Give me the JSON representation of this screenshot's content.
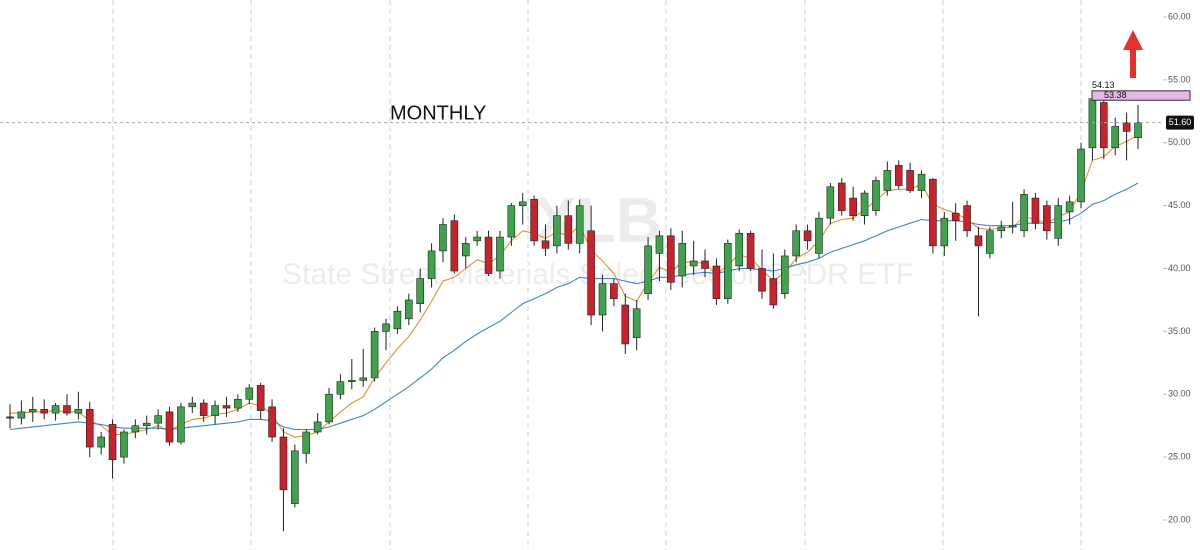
{
  "chart_data": {
    "type": "candlestick",
    "title": "XLB",
    "subtitle": "State Street Materials Select Sector SPDR ETF",
    "annotation": "MONTHLY",
    "up_color": "#3fa34d",
    "down_color": "#c8232c",
    "ylim": [
      20,
      60
    ],
    "yticks": [
      {
        "value": 20,
        "label": "20.00"
      },
      {
        "value": 25,
        "label": "25.00"
      },
      {
        "value": 30,
        "label": "30.00"
      },
      {
        "value": 35,
        "label": "35.00"
      },
      {
        "value": 40,
        "label": "40.00"
      },
      {
        "value": 45,
        "label": "45.00"
      },
      {
        "value": 50,
        "label": "50.00"
      },
      {
        "value": 55,
        "label": "55.00"
      },
      {
        "value": 60,
        "label": "60.00"
      }
    ],
    "last_price": {
      "value": 51.6,
      "label": "51.60"
    },
    "zone": {
      "high": 54.13,
      "low": 53.38,
      "color": "#e3b6e3"
    },
    "candles": [
      {
        "o": 28.2,
        "h": 29.2,
        "l": 27.3,
        "c": 28.1
      },
      {
        "o": 28.1,
        "h": 29.5,
        "l": 27.6,
        "c": 28.6
      },
      {
        "o": 28.6,
        "h": 29.8,
        "l": 27.8,
        "c": 28.8
      },
      {
        "o": 28.8,
        "h": 29.6,
        "l": 28.0,
        "c": 28.5
      },
      {
        "o": 28.5,
        "h": 29.3,
        "l": 27.9,
        "c": 29.1
      },
      {
        "o": 29.1,
        "h": 30.0,
        "l": 28.3,
        "c": 28.5
      },
      {
        "o": 28.5,
        "h": 30.2,
        "l": 28.0,
        "c": 28.8
      },
      {
        "o": 28.8,
        "h": 29.4,
        "l": 25.0,
        "c": 25.8
      },
      {
        "o": 25.8,
        "h": 27.0,
        "l": 25.2,
        "c": 26.6
      },
      {
        "o": 27.6,
        "h": 28.0,
        "l": 23.3,
        "c": 24.8
      },
      {
        "o": 25.0,
        "h": 27.2,
        "l": 24.5,
        "c": 27.0
      },
      {
        "o": 27.0,
        "h": 28.0,
        "l": 26.5,
        "c": 27.5
      },
      {
        "o": 27.5,
        "h": 28.3,
        "l": 26.8,
        "c": 27.7
      },
      {
        "o": 27.7,
        "h": 28.8,
        "l": 27.2,
        "c": 28.3
      },
      {
        "o": 28.6,
        "h": 29.0,
        "l": 25.9,
        "c": 26.2
      },
      {
        "o": 26.2,
        "h": 29.3,
        "l": 26.0,
        "c": 29.0
      },
      {
        "o": 29.0,
        "h": 29.8,
        "l": 28.5,
        "c": 29.3
      },
      {
        "o": 29.3,
        "h": 29.6,
        "l": 27.8,
        "c": 28.3
      },
      {
        "o": 28.3,
        "h": 29.5,
        "l": 27.6,
        "c": 29.1
      },
      {
        "o": 29.1,
        "h": 29.8,
        "l": 28.2,
        "c": 28.9
      },
      {
        "o": 28.9,
        "h": 30.0,
        "l": 28.6,
        "c": 29.6
      },
      {
        "o": 29.6,
        "h": 30.8,
        "l": 29.2,
        "c": 30.5
      },
      {
        "o": 30.7,
        "h": 30.9,
        "l": 28.0,
        "c": 28.7
      },
      {
        "o": 29.0,
        "h": 29.6,
        "l": 26.2,
        "c": 26.6
      },
      {
        "o": 26.6,
        "h": 27.3,
        "l": 19.1,
        "c": 22.4
      },
      {
        "o": 21.3,
        "h": 26.0,
        "l": 21.0,
        "c": 25.5
      },
      {
        "o": 25.3,
        "h": 27.2,
        "l": 24.5,
        "c": 27.0
      },
      {
        "o": 27.0,
        "h": 28.5,
        "l": 26.8,
        "c": 27.8
      },
      {
        "o": 27.8,
        "h": 30.5,
        "l": 27.6,
        "c": 30.0
      },
      {
        "o": 30.0,
        "h": 31.6,
        "l": 29.6,
        "c": 31.0
      },
      {
        "o": 31.0,
        "h": 32.8,
        "l": 30.4,
        "c": 31.1
      },
      {
        "o": 31.1,
        "h": 33.6,
        "l": 30.6,
        "c": 31.3
      },
      {
        "o": 31.3,
        "h": 35.3,
        "l": 31.0,
        "c": 35.0
      },
      {
        "o": 35.0,
        "h": 36.0,
        "l": 33.5,
        "c": 35.6
      },
      {
        "o": 35.2,
        "h": 37.0,
        "l": 34.8,
        "c": 36.6
      },
      {
        "o": 36.0,
        "h": 38.0,
        "l": 35.5,
        "c": 37.5
      },
      {
        "o": 37.2,
        "h": 40.0,
        "l": 36.5,
        "c": 39.2
      },
      {
        "o": 39.2,
        "h": 42.0,
        "l": 38.5,
        "c": 41.4
      },
      {
        "o": 41.4,
        "h": 44.0,
        "l": 40.5,
        "c": 43.5
      },
      {
        "o": 43.8,
        "h": 44.3,
        "l": 39.6,
        "c": 39.8
      },
      {
        "o": 41.0,
        "h": 42.5,
        "l": 40.0,
        "c": 42.0
      },
      {
        "o": 42.2,
        "h": 43.0,
        "l": 41.8,
        "c": 42.5
      },
      {
        "o": 42.5,
        "h": 43.0,
        "l": 39.4,
        "c": 39.6
      },
      {
        "o": 39.8,
        "h": 43.0,
        "l": 39.2,
        "c": 42.5
      },
      {
        "o": 42.5,
        "h": 45.2,
        "l": 41.8,
        "c": 45.0
      },
      {
        "o": 45.0,
        "h": 46.0,
        "l": 43.5,
        "c": 45.3
      },
      {
        "o": 45.5,
        "h": 45.8,
        "l": 41.8,
        "c": 42.2
      },
      {
        "o": 42.2,
        "h": 43.5,
        "l": 41.0,
        "c": 41.6
      },
      {
        "o": 41.8,
        "h": 45.0,
        "l": 41.2,
        "c": 44.2
      },
      {
        "o": 44.2,
        "h": 45.4,
        "l": 41.5,
        "c": 42.0
      },
      {
        "o": 42.0,
        "h": 45.5,
        "l": 41.2,
        "c": 45.0
      },
      {
        "o": 43.0,
        "h": 45.0,
        "l": 35.5,
        "c": 36.3
      },
      {
        "o": 36.3,
        "h": 39.5,
        "l": 35.0,
        "c": 38.8
      },
      {
        "o": 38.8,
        "h": 39.2,
        "l": 37.0,
        "c": 37.6
      },
      {
        "o": 37.1,
        "h": 38.0,
        "l": 33.2,
        "c": 34.0
      },
      {
        "o": 34.5,
        "h": 37.5,
        "l": 33.5,
        "c": 36.8
      },
      {
        "o": 38.0,
        "h": 42.5,
        "l": 37.5,
        "c": 41.8
      },
      {
        "o": 41.2,
        "h": 43.0,
        "l": 39.0,
        "c": 42.6
      },
      {
        "o": 42.6,
        "h": 43.2,
        "l": 38.3,
        "c": 38.9
      },
      {
        "o": 39.4,
        "h": 43.0,
        "l": 38.5,
        "c": 42.0
      },
      {
        "o": 40.2,
        "h": 42.2,
        "l": 39.5,
        "c": 40.6
      },
      {
        "o": 40.6,
        "h": 41.5,
        "l": 39.3,
        "c": 40.0
      },
      {
        "o": 40.2,
        "h": 40.8,
        "l": 37.1,
        "c": 37.6
      },
      {
        "o": 37.6,
        "h": 42.3,
        "l": 37.2,
        "c": 42.0
      },
      {
        "o": 40.2,
        "h": 43.1,
        "l": 39.8,
        "c": 42.8
      },
      {
        "o": 42.8,
        "h": 43.0,
        "l": 39.8,
        "c": 40.0
      },
      {
        "o": 40.0,
        "h": 41.5,
        "l": 37.6,
        "c": 38.2
      },
      {
        "o": 39.2,
        "h": 41.2,
        "l": 36.8,
        "c": 37.1
      },
      {
        "o": 38.0,
        "h": 41.5,
        "l": 37.6,
        "c": 41.0
      },
      {
        "o": 41.0,
        "h": 43.5,
        "l": 40.5,
        "c": 43.0
      },
      {
        "o": 43.0,
        "h": 43.5,
        "l": 41.5,
        "c": 42.2
      },
      {
        "o": 41.2,
        "h": 44.5,
        "l": 40.8,
        "c": 44.0
      },
      {
        "o": 44.0,
        "h": 46.8,
        "l": 43.5,
        "c": 46.5
      },
      {
        "o": 46.8,
        "h": 47.2,
        "l": 44.2,
        "c": 44.6
      },
      {
        "o": 45.6,
        "h": 46.5,
        "l": 43.8,
        "c": 44.2
      },
      {
        "o": 44.2,
        "h": 46.2,
        "l": 43.5,
        "c": 46.0
      },
      {
        "o": 44.6,
        "h": 47.3,
        "l": 44.2,
        "c": 47.0
      },
      {
        "o": 46.2,
        "h": 48.5,
        "l": 45.8,
        "c": 47.8
      },
      {
        "o": 48.2,
        "h": 48.6,
        "l": 46.3,
        "c": 46.6
      },
      {
        "o": 47.8,
        "h": 48.4,
        "l": 46.0,
        "c": 46.2
      },
      {
        "o": 46.2,
        "h": 47.8,
        "l": 45.6,
        "c": 47.5
      },
      {
        "o": 47.1,
        "h": 47.2,
        "l": 41.2,
        "c": 41.8
      },
      {
        "o": 41.8,
        "h": 44.5,
        "l": 41.0,
        "c": 44.0
      },
      {
        "o": 44.4,
        "h": 45.2,
        "l": 42.2,
        "c": 43.8
      },
      {
        "o": 45.0,
        "h": 45.4,
        "l": 42.5,
        "c": 43.0
      },
      {
        "o": 42.6,
        "h": 43.3,
        "l": 36.2,
        "c": 41.8
      },
      {
        "o": 41.2,
        "h": 43.3,
        "l": 40.8,
        "c": 43.0
      },
      {
        "o": 43.0,
        "h": 43.8,
        "l": 42.4,
        "c": 43.3
      },
      {
        "o": 43.3,
        "h": 45.3,
        "l": 42.8,
        "c": 43.4
      },
      {
        "o": 43.0,
        "h": 46.3,
        "l": 42.5,
        "c": 45.9
      },
      {
        "o": 45.6,
        "h": 46.0,
        "l": 43.1,
        "c": 43.6
      },
      {
        "o": 45.0,
        "h": 45.4,
        "l": 42.3,
        "c": 43.0
      },
      {
        "o": 42.4,
        "h": 45.6,
        "l": 41.8,
        "c": 45.0
      },
      {
        "o": 44.5,
        "h": 45.8,
        "l": 43.5,
        "c": 45.3
      },
      {
        "o": 45.3,
        "h": 50.0,
        "l": 44.8,
        "c": 49.5
      },
      {
        "o": 49.6,
        "h": 54.13,
        "l": 48.6,
        "c": 53.5
      },
      {
        "o": 53.2,
        "h": 53.4,
        "l": 48.7,
        "c": 49.6
      },
      {
        "o": 49.6,
        "h": 52.0,
        "l": 49.0,
        "c": 51.3
      },
      {
        "o": 51.6,
        "h": 52.4,
        "l": 48.6,
        "c": 50.9
      },
      {
        "o": 50.4,
        "h": 53.0,
        "l": 49.5,
        "c": 51.6
      }
    ],
    "series": [
      {
        "color": "#e8902a",
        "values": [
          28.5,
          28.5,
          28.6,
          28.6,
          28.7,
          28.6,
          28.6,
          27.9,
          27.5,
          26.8,
          26.8,
          27.0,
          27.2,
          27.5,
          27.1,
          27.6,
          28.0,
          28.1,
          28.4,
          28.5,
          28.8,
          29.3,
          29.1,
          28.4,
          27.0,
          26.6,
          26.7,
          27.0,
          27.8,
          28.6,
          29.3,
          29.8,
          31.3,
          32.5,
          33.6,
          34.6,
          35.9,
          37.4,
          39.0,
          39.3,
          40.0,
          40.7,
          40.4,
          41.0,
          42.2,
          43.0,
          42.8,
          42.4,
          42.9,
          42.6,
          43.4,
          41.5,
          40.6,
          39.6,
          37.8,
          37.4,
          38.9,
          40.1,
          39.7,
          40.5,
          40.5,
          40.4,
          39.5,
          40.3,
          41.1,
          40.8,
          39.9,
          39.0,
          39.7,
          40.8,
          41.3,
          42.2,
          43.6,
          43.9,
          44.0,
          44.7,
          45.4,
          46.2,
          46.3,
          46.3,
          46.7,
          45.1,
          44.7,
          44.4,
          43.9,
          43.2,
          43.1,
          43.2,
          43.3,
          44.1,
          43.9,
          43.6,
          44.1,
          44.5,
          46.1,
          48.6,
          48.9,
          49.7,
          50.1,
          50.6
        ]
      },
      {
        "color": "#3b86c8",
        "values": [
          27.2,
          27.3,
          27.4,
          27.5,
          27.6,
          27.7,
          27.8,
          27.7,
          27.6,
          27.4,
          27.3,
          27.3,
          27.3,
          27.3,
          27.2,
          27.3,
          27.4,
          27.5,
          27.6,
          27.7,
          27.8,
          28.0,
          28.0,
          27.9,
          27.4,
          27.2,
          27.2,
          27.2,
          27.4,
          27.7,
          28.0,
          28.3,
          28.8,
          29.4,
          30.0,
          30.6,
          31.3,
          32.0,
          32.9,
          33.5,
          34.2,
          34.8,
          35.3,
          35.8,
          36.5,
          37.2,
          37.6,
          38.0,
          38.5,
          38.8,
          39.3,
          39.2,
          39.2,
          39.2,
          39.0,
          38.8,
          39.0,
          39.3,
          39.3,
          39.5,
          39.6,
          39.7,
          39.6,
          39.8,
          40.0,
          40.0,
          39.9,
          39.8,
          40.0,
          40.3,
          40.5,
          40.8,
          41.3,
          41.6,
          41.9,
          42.2,
          42.6,
          43.0,
          43.3,
          43.6,
          43.9,
          43.8,
          43.8,
          43.8,
          43.7,
          43.5,
          43.4,
          43.4,
          43.4,
          43.6,
          43.6,
          43.6,
          43.7,
          43.9,
          44.4,
          45.1,
          45.4,
          45.9,
          46.3,
          46.8
        ]
      }
    ]
  }
}
